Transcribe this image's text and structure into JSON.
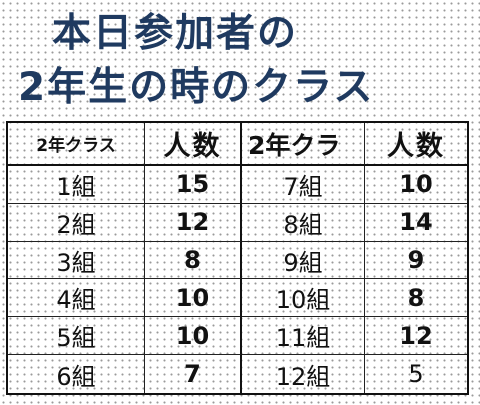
{
  "title_line1": "本日参加者の",
  "title_line2": "2年生の時のクラス",
  "headers": [
    "2年クラス",
    "人数",
    "2年クラ",
    "人数"
  ],
  "rows": [
    {
      "class_a": "1組",
      "count_a": "15",
      "class_b": "7組",
      "count_b": "10"
    },
    {
      "class_a": "2組",
      "count_a": "12",
      "class_b": "8組",
      "count_b": "14"
    },
    {
      "class_a": "3組",
      "count_a": "8",
      "class_b": "9組",
      "count_b": "9"
    },
    {
      "class_a": "4組",
      "count_a": "10",
      "class_b": "10組",
      "count_b": "8"
    },
    {
      "class_a": "5組",
      "count_a": "10",
      "class_b": "11組",
      "count_b": "12"
    },
    {
      "class_a": "6組",
      "count_a": "7",
      "class_b": "12組",
      "count_b": "5"
    }
  ],
  "colors": {
    "title": "#1f3a60",
    "grid_dots": "#9a9a9a",
    "border": "#111111"
  }
}
